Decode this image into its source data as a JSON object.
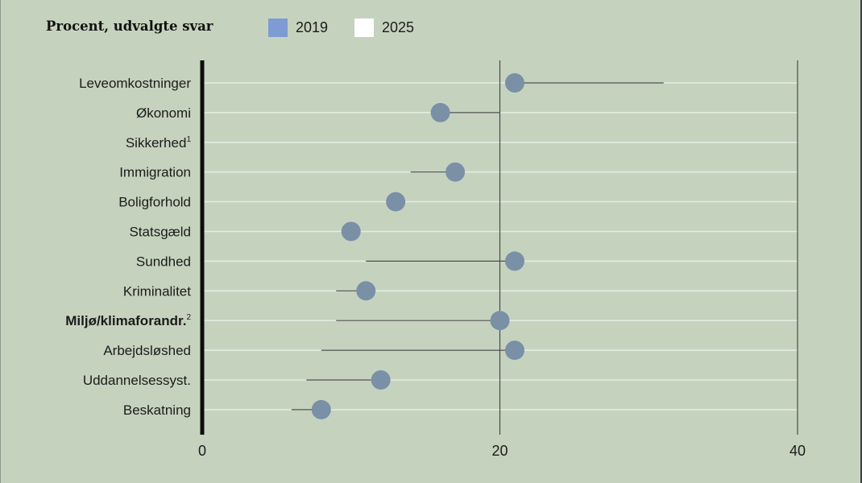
{
  "chart_data": {
    "type": "scatter",
    "title": "Procent, udvalgte svar",
    "categories": [
      {
        "label": "Leveomkostninger"
      },
      {
        "label": "Økonomi"
      },
      {
        "label": "Sikkerhed",
        "note": "1"
      },
      {
        "label": "Immigration"
      },
      {
        "label": "Boligforhold"
      },
      {
        "label": "Statsgæld"
      },
      {
        "label": "Sundhed"
      },
      {
        "label": "Kriminalitet"
      },
      {
        "label": "Miljø/klimaforandr.",
        "note": "2",
        "highlight": true
      },
      {
        "label": "Arbejdsløshed"
      },
      {
        "label": "Uddannelsessyst."
      },
      {
        "label": "Beskatning"
      }
    ],
    "series": [
      {
        "name": "2019",
        "color": "#7f9bd3",
        "values": [
          21,
          16,
          null,
          17,
          13,
          10,
          21,
          11,
          20,
          21,
          12,
          8
        ]
      },
      {
        "name": "2025",
        "color": "#ffffff",
        "values": [
          31,
          20,
          null,
          14,
          null,
          null,
          11,
          9,
          9,
          8,
          7,
          6
        ]
      }
    ],
    "xlim": [
      0,
      40
    ],
    "xticks": [
      0,
      20,
      40
    ],
    "grid": true,
    "legend_position": "top"
  },
  "colors": {
    "dot": "#7a90a7",
    "connector": "#4a4a4a",
    "gridline": "#e4ece1",
    "reference_line": "#4a4a4a",
    "axis": "#0d0d0d",
    "text": "#1b1b1b"
  }
}
